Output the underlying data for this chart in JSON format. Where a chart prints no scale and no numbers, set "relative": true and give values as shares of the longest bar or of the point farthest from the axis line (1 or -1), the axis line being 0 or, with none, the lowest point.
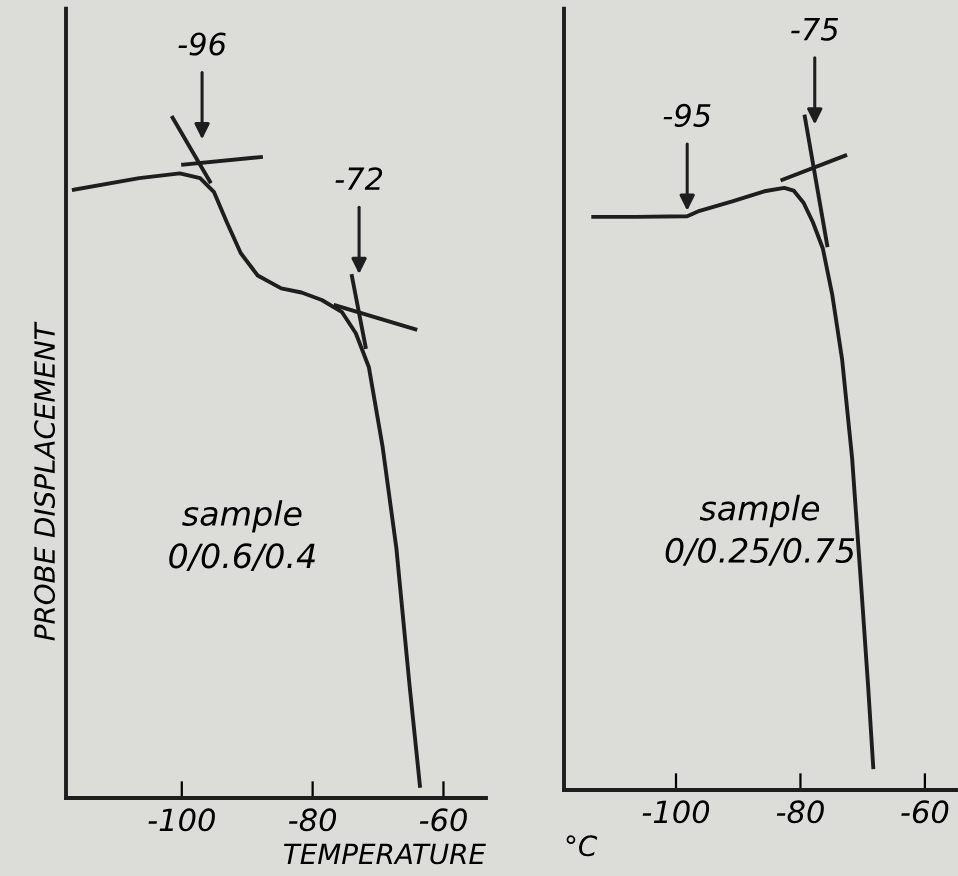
{
  "chart_data": [
    {
      "type": "line",
      "relative": true,
      "ylabel": "PROBE DISPLACEMENT",
      "xlabel": "TEMPERATURE",
      "xlim": [
        -117.7,
        -53.5
      ],
      "xticks": [
        -100,
        -80,
        -60
      ],
      "tick_labels": "x",
      "grid": false,
      "legend": false,
      "marker": "none",
      "line_style": "solid",
      "series": [
        {
          "color": "#1e1e1e",
          "x": [
            -116.5,
            -106.5,
            -100.3,
            -97.2,
            -95.1,
            -93.1,
            -91.0,
            -88.4,
            -84.8,
            -81.7,
            -78.6,
            -75.5,
            -73.4,
            -71.4,
            -69.3,
            -67.2,
            -65.2,
            -63.6
          ],
          "values": [
            0.894,
            0.911,
            0.918,
            0.911,
            0.891,
            0.846,
            0.801,
            0.768,
            0.749,
            0.743,
            0.732,
            0.714,
            0.683,
            0.633,
            0.516,
            0.367,
            0.167,
            0.018
          ]
        },
        {
          "type": "line",
          "color": "#1e1e1e",
          "x": [
            -99.8,
            -87.9
          ],
          "values": [
            0.931,
            0.942
          ]
        },
        {
          "type": "line",
          "color": "#1e1e1e",
          "x": [
            -101.4,
            -95.7
          ],
          "values": [
            1.0,
            0.906
          ]
        },
        {
          "type": "line",
          "color": "#1e1e1e",
          "x": [
            -76.5,
            -64.3
          ],
          "values": [
            0.724,
            0.689
          ]
        },
        {
          "type": "line",
          "color": "#1e1e1e",
          "x": [
            -74.0,
            -71.9
          ],
          "values": [
            0.767,
            0.663
          ]
        }
      ],
      "annotations": [
        {
          "text": "-96",
          "x": -96.9,
          "y": 0.96
        },
        {
          "text": "-72",
          "x": -72.9,
          "y": 0.762
        },
        "sample\n0/0.6/0.4"
      ]
    },
    {
      "type": "line",
      "relative": true,
      "xlabel": "°C",
      "xlim": [
        -118,
        -55
      ],
      "xticks": [
        -100,
        -80,
        -60
      ],
      "tick_labels": "x",
      "grid": false,
      "legend": false,
      "marker": "none",
      "line_style": "solid",
      "series": [
        {
          "color": "#1e1e1e",
          "x": [
            -113.3,
            -106.5,
            -98.2,
            -96.2,
            -90.96,
            -85.8,
            -82.6,
            -81.1,
            -79.5,
            -78.0,
            -76.4,
            -74.9,
            -73.3,
            -71.7,
            -70.2,
            -69.1,
            -68.3
          ],
          "values": [
            0.851,
            0.851,
            0.852,
            0.86,
            0.874,
            0.889,
            0.894,
            0.89,
            0.872,
            0.843,
            0.804,
            0.736,
            0.639,
            0.493,
            0.298,
            0.151,
            0.034
          ]
        },
        {
          "type": "line",
          "color": "#1e1e1e",
          "x": [
            -82.9,
            -72.8
          ],
          "values": [
            0.906,
            0.942
          ]
        },
        {
          "type": "line",
          "color": "#1e1e1e",
          "x": [
            -79.3,
            -75.7
          ],
          "values": [
            1.0,
            0.809
          ]
        }
      ],
      "annotations": [
        {
          "text": "-95",
          "x": -98.2,
          "y": 0.852
        },
        {
          "text": "-75",
          "x": -77.7,
          "y": 0.98
        },
        "sample\n0/0.25/0.75"
      ]
    }
  ]
}
